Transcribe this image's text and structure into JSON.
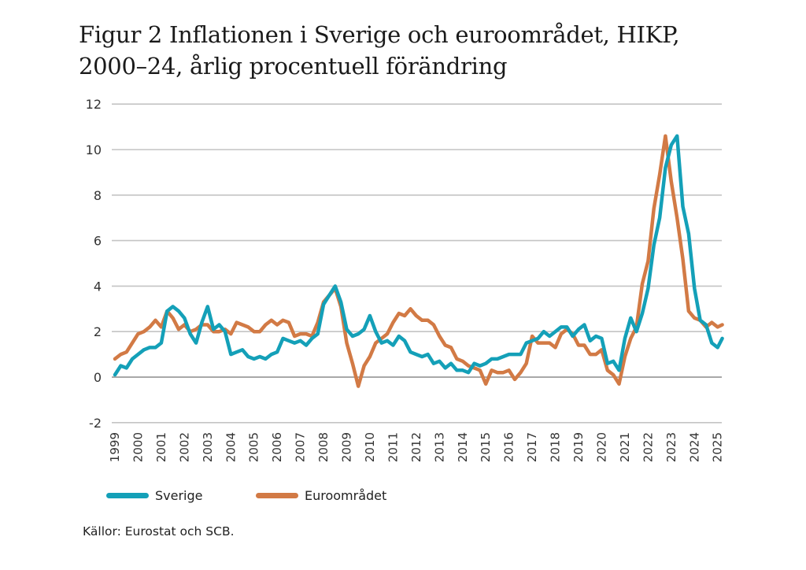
{
  "figure": {
    "title_line1": "Figur 2 Inflationen i Sverige och euroområdet, HIKP,",
    "title_line2": "2000–24, årlig procentuell förändring",
    "source": "Källor: Eurostat och SCB."
  },
  "legend": [
    {
      "name": "Sverige",
      "color": "#14a0b8"
    },
    {
      "name": "Euroområdet",
      "color": "#d27a45"
    }
  ],
  "chart_data": {
    "type": "line",
    "title": "Figur 2 Inflationen i Sverige och euroområdet, HIKP, 2000–24, årlig procentuell förändring",
    "xlabel": "",
    "ylabel": "",
    "ylim": [
      -2,
      12
    ],
    "xlim": [
      1999,
      2025.2
    ],
    "grid": true,
    "legend_position": "bottom-left",
    "y_ticks": [
      12,
      10,
      8,
      6,
      4,
      2,
      0,
      -2
    ],
    "x_ticks": [
      "1999",
      "2000",
      "2001",
      "2002",
      "2003",
      "2004",
      "2005",
      "2006",
      "2007",
      "2008",
      "2009",
      "2010",
      "2011",
      "2012",
      "2013",
      "2014",
      "2015",
      "2016",
      "2017",
      "2018",
      "2019",
      "2020",
      "2021",
      "2022",
      "2023",
      "2024",
      "2025"
    ],
    "x": [
      1999.0,
      1999.25,
      1999.5,
      1999.75,
      2000.0,
      2000.25,
      2000.5,
      2000.75,
      2001.0,
      2001.25,
      2001.5,
      2001.75,
      2002.0,
      2002.25,
      2002.5,
      2002.75,
      2003.0,
      2003.25,
      2003.5,
      2003.75,
      2004.0,
      2004.25,
      2004.5,
      2004.75,
      2005.0,
      2005.25,
      2005.5,
      2005.75,
      2006.0,
      2006.25,
      2006.5,
      2006.75,
      2007.0,
      2007.25,
      2007.5,
      2007.75,
      2008.0,
      2008.25,
      2008.5,
      2008.75,
      2009.0,
      2009.25,
      2009.5,
      2009.75,
      2010.0,
      2010.25,
      2010.5,
      2010.75,
      2011.0,
      2011.25,
      2011.5,
      2011.75,
      2012.0,
      2012.25,
      2012.5,
      2012.75,
      2013.0,
      2013.25,
      2013.5,
      2013.75,
      2014.0,
      2014.25,
      2014.5,
      2014.75,
      2015.0,
      2015.25,
      2015.5,
      2015.75,
      2016.0,
      2016.25,
      2016.5,
      2016.75,
      2017.0,
      2017.25,
      2017.5,
      2017.75,
      2018.0,
      2018.25,
      2018.5,
      2018.75,
      2019.0,
      2019.25,
      2019.5,
      2019.75,
      2020.0,
      2020.25,
      2020.5,
      2020.75,
      2021.0,
      2021.25,
      2021.5,
      2021.75,
      2022.0,
      2022.25,
      2022.5,
      2022.75,
      2023.0,
      2023.25,
      2023.5,
      2023.75,
      2024.0,
      2024.25,
      2024.5,
      2024.75,
      2025.0,
      2025.2
    ],
    "series": [
      {
        "name": "Sverige",
        "color": "#14a0b8",
        "values": [
          0.1,
          0.5,
          0.4,
          0.8,
          1.0,
          1.2,
          1.3,
          1.3,
          1.5,
          2.9,
          3.1,
          2.9,
          2.6,
          1.9,
          1.5,
          2.4,
          3.1,
          2.1,
          2.3,
          2.0,
          1.0,
          1.1,
          1.2,
          0.9,
          0.8,
          0.9,
          0.8,
          1.0,
          1.1,
          1.7,
          1.6,
          1.5,
          1.6,
          1.4,
          1.7,
          1.9,
          3.2,
          3.6,
          4.0,
          3.3,
          2.1,
          1.8,
          1.9,
          2.1,
          2.7,
          2.0,
          1.5,
          1.6,
          1.4,
          1.8,
          1.6,
          1.1,
          1.0,
          0.9,
          1.0,
          0.6,
          0.7,
          0.4,
          0.6,
          0.3,
          0.3,
          0.2,
          0.6,
          0.5,
          0.6,
          0.8,
          0.8,
          0.9,
          1.0,
          1.0,
          1.0,
          1.5,
          1.6,
          1.7,
          2.0,
          1.8,
          2.0,
          2.2,
          2.2,
          1.8,
          2.1,
          2.3,
          1.6,
          1.8,
          1.7,
          0.6,
          0.7,
          0.3,
          1.7,
          2.6,
          2.0,
          2.8,
          3.9,
          5.8,
          7.0,
          9.2,
          10.2,
          10.6,
          7.5,
          6.3,
          3.9,
          2.5,
          2.3,
          1.5,
          1.3,
          1.7
        ]
      },
      {
        "name": "Euroområdet",
        "color": "#d27a45",
        "values": [
          0.8,
          1.0,
          1.1,
          1.5,
          1.9,
          2.0,
          2.2,
          2.5,
          2.2,
          2.9,
          2.6,
          2.1,
          2.3,
          2.0,
          2.1,
          2.3,
          2.3,
          2.0,
          2.0,
          2.1,
          1.9,
          2.4,
          2.3,
          2.2,
          2.0,
          2.0,
          2.3,
          2.5,
          2.3,
          2.5,
          2.4,
          1.8,
          1.9,
          1.9,
          1.8,
          2.4,
          3.3,
          3.6,
          3.9,
          3.1,
          1.5,
          0.6,
          -0.4,
          0.5,
          0.9,
          1.5,
          1.7,
          1.9,
          2.4,
          2.8,
          2.7,
          3.0,
          2.7,
          2.5,
          2.5,
          2.3,
          1.8,
          1.4,
          1.3,
          0.8,
          0.7,
          0.5,
          0.4,
          0.3,
          -0.3,
          0.3,
          0.2,
          0.2,
          0.3,
          -0.1,
          0.2,
          0.6,
          1.8,
          1.5,
          1.5,
          1.5,
          1.3,
          1.9,
          2.1,
          1.9,
          1.4,
          1.4,
          1.0,
          1.0,
          1.2,
          0.3,
          0.1,
          -0.3,
          0.9,
          1.7,
          2.2,
          4.1,
          5.1,
          7.4,
          8.9,
          10.6,
          8.6,
          7.0,
          5.2,
          2.9,
          2.6,
          2.5,
          2.2,
          2.4,
          2.2,
          2.3
        ]
      }
    ]
  }
}
